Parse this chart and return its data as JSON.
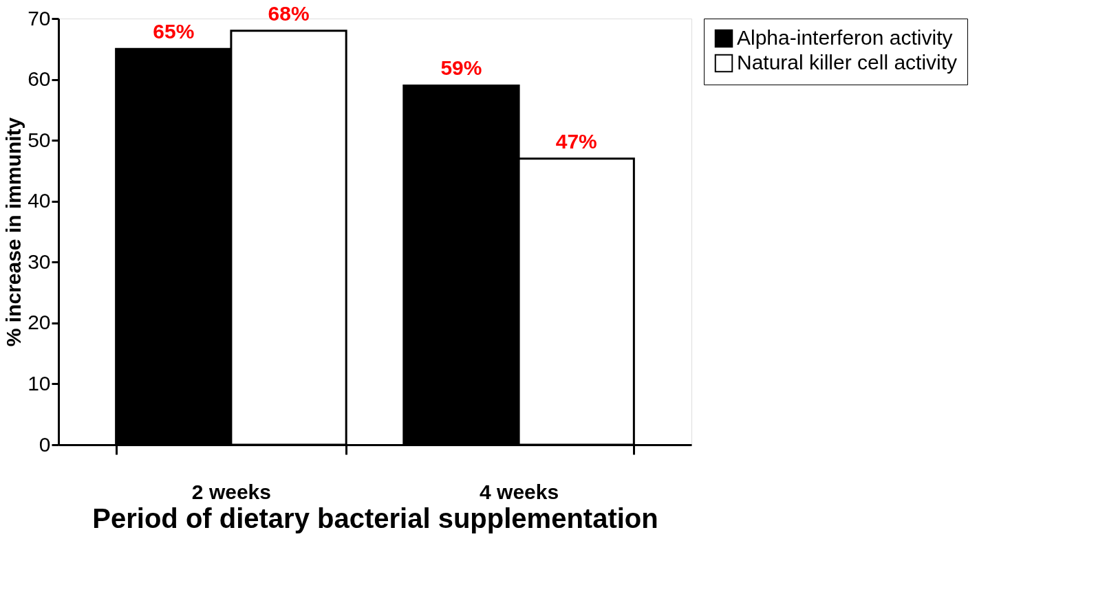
{
  "chart_data": {
    "type": "bar",
    "xlabel": "Period of dietary bacterial supplementation",
    "ylabel": "% increase in immunity",
    "categories": [
      "2 weeks",
      "4 weeks"
    ],
    "series": [
      {
        "name": "Alpha-interferon activity",
        "color": "#000000",
        "values": [
          65,
          59
        ]
      },
      {
        "name": "Natural killer cell activity",
        "color": "#ffffff",
        "values": [
          68,
          47
        ]
      }
    ],
    "value_labels": [
      [
        "65%",
        "59%"
      ],
      [
        "68%",
        "47%"
      ]
    ],
    "ylim": [
      0,
      70
    ],
    "yticks": [
      0,
      10,
      20,
      30,
      40,
      50,
      60,
      70
    ],
    "grid": false,
    "legend": "right"
  }
}
